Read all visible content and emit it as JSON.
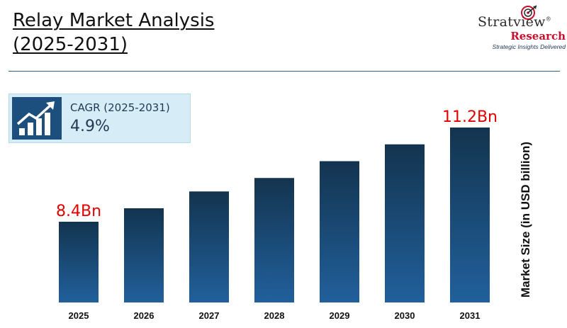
{
  "header": {
    "title_line1": "Relay Market Analysis",
    "title_line2": "(2025-2031)"
  },
  "logo": {
    "brand": "Stratview",
    "registered": "®",
    "sub": "Research",
    "tagline": "Strategic Insights Delivered",
    "icon": "target-arrow-icon"
  },
  "cagr": {
    "label": "CAGR (2025-2031)",
    "value": "4.9%",
    "icon": "growth-chart-icon"
  },
  "chart_data": {
    "type": "bar",
    "categories": [
      "2025",
      "2026",
      "2027",
      "2028",
      "2029",
      "2030",
      "2031"
    ],
    "values": [
      8.4,
      8.8,
      9.3,
      9.7,
      10.2,
      10.7,
      11.2
    ],
    "data_labels": [
      "8.4Bn",
      "",
      "",
      "",
      "",
      "",
      "11.2Bn"
    ],
    "ylabel": "Market Size (in USD billion)",
    "xlabel": "",
    "ylim": [
      6.0,
      11.5
    ],
    "grid": false,
    "colors": {
      "bar_top": "#13344f",
      "bar_bottom": "#21609c",
      "label": "#e00000"
    }
  }
}
